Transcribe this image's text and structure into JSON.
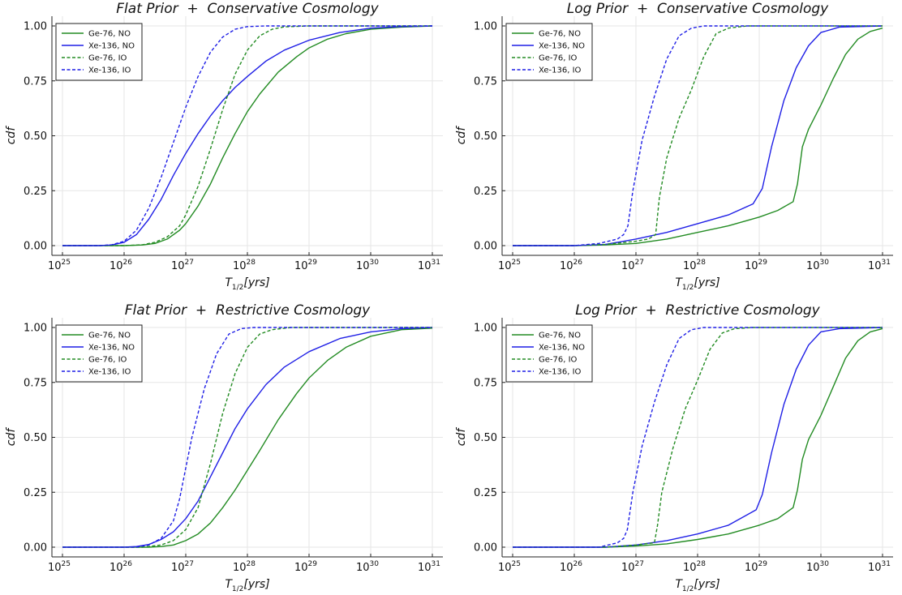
{
  "chart_data": [
    {
      "type": "line",
      "title": "Flat Prior  +  Conservative Cosmology",
      "xlabel": "T",
      "xlabel_sub": "1/2",
      "xlabel_rest": "[yrs]",
      "ylabel": "cdf",
      "xscale": "log",
      "xlim": [
        1e+25,
        1e+31
      ],
      "ylim": [
        0,
        1
      ],
      "xtick_base": "10",
      "xtick_exponents": [
        "25",
        "26",
        "27",
        "28",
        "29",
        "30",
        "31"
      ],
      "yticks": [
        "0.00",
        "0.25",
        "0.50",
        "0.75",
        "1.00"
      ],
      "grid": true,
      "legend_position": "top-left",
      "series": [
        {
          "name": "Ge-76, NO",
          "color": "#228b22",
          "dash": "solid",
          "x": [
            25,
            26,
            26.3,
            26.5,
            26.7,
            26.9,
            27,
            27.2,
            27.4,
            27.6,
            27.8,
            28,
            28.2,
            28.5,
            28.8,
            29,
            29.3,
            29.6,
            30,
            30.5,
            31
          ],
          "y": [
            0,
            0,
            0.003,
            0.01,
            0.03,
            0.07,
            0.1,
            0.18,
            0.28,
            0.4,
            0.51,
            0.61,
            0.69,
            0.79,
            0.86,
            0.9,
            0.94,
            0.965,
            0.985,
            0.995,
            1.0
          ]
        },
        {
          "name": "Xe-136, NO",
          "color": "#1f1fe6",
          "dash": "solid",
          "x": [
            25,
            25.6,
            25.8,
            26,
            26.2,
            26.4,
            26.6,
            26.8,
            27,
            27.2,
            27.4,
            27.6,
            27.8,
            28,
            28.3,
            28.6,
            29,
            29.5,
            30,
            30.5,
            31
          ],
          "y": [
            0,
            0,
            0.003,
            0.015,
            0.05,
            0.12,
            0.21,
            0.32,
            0.42,
            0.51,
            0.59,
            0.66,
            0.72,
            0.77,
            0.84,
            0.89,
            0.935,
            0.97,
            0.99,
            0.997,
            1.0
          ]
        },
        {
          "name": "Ge-76, IO",
          "color": "#228b22",
          "dash": "dashed",
          "x": [
            25,
            26,
            26.3,
            26.5,
            26.7,
            26.9,
            27,
            27.2,
            27.4,
            27.6,
            27.8,
            28,
            28.2,
            28.4,
            28.6,
            29,
            31
          ],
          "y": [
            0,
            0,
            0.004,
            0.015,
            0.04,
            0.09,
            0.14,
            0.27,
            0.44,
            0.62,
            0.78,
            0.89,
            0.955,
            0.985,
            0.996,
            1.0,
            1.0
          ]
        },
        {
          "name": "Xe-136, IO",
          "color": "#1f1fe6",
          "dash": "dashed",
          "x": [
            25,
            25.6,
            25.8,
            26,
            26.2,
            26.4,
            26.6,
            26.8,
            27,
            27.2,
            27.4,
            27.6,
            27.8,
            28,
            28.3,
            31
          ],
          "y": [
            0,
            0,
            0.004,
            0.02,
            0.07,
            0.17,
            0.31,
            0.47,
            0.63,
            0.77,
            0.88,
            0.95,
            0.985,
            0.997,
            1.0,
            1.0
          ]
        }
      ]
    },
    {
      "type": "line",
      "title": "Log Prior  +  Conservative Cosmology",
      "xlabel": "T",
      "xlabel_sub": "1/2",
      "xlabel_rest": "[yrs]",
      "ylabel": "cdf",
      "xscale": "log",
      "xlim": [
        1e+25,
        1e+31
      ],
      "ylim": [
        0,
        1
      ],
      "xtick_base": "10",
      "xtick_exponents": [
        "25",
        "26",
        "27",
        "28",
        "29",
        "30",
        "31"
      ],
      "yticks": [
        "0.00",
        "0.25",
        "0.50",
        "0.75",
        "1.00"
      ],
      "grid": true,
      "legend_position": "top-left",
      "series": [
        {
          "name": "Ge-76, NO",
          "color": "#228b22",
          "dash": "solid",
          "x": [
            25,
            26,
            26.5,
            27,
            27.5,
            28,
            28.5,
            29,
            29.3,
            29.55,
            29.62,
            29.7,
            29.8,
            30,
            30.2,
            30.4,
            30.6,
            30.8,
            31
          ],
          "y": [
            0,
            0,
            0.003,
            0.01,
            0.03,
            0.06,
            0.09,
            0.13,
            0.16,
            0.2,
            0.28,
            0.45,
            0.53,
            0.64,
            0.76,
            0.87,
            0.94,
            0.975,
            0.99
          ]
        },
        {
          "name": "Xe-136, NO",
          "color": "#1f1fe6",
          "dash": "solid",
          "x": [
            25,
            26,
            26.5,
            27,
            27.5,
            28,
            28.5,
            28.9,
            29.05,
            29.2,
            29.4,
            29.6,
            29.8,
            30,
            30.3,
            31
          ],
          "y": [
            0,
            0,
            0.005,
            0.03,
            0.06,
            0.1,
            0.14,
            0.19,
            0.26,
            0.45,
            0.66,
            0.81,
            0.91,
            0.97,
            0.995,
            1.0
          ]
        },
        {
          "name": "Ge-76, IO",
          "color": "#228b22",
          "dash": "dashed",
          "x": [
            25,
            26,
            26.5,
            27,
            27.2,
            27.32,
            27.38,
            27.5,
            27.7,
            27.9,
            28.1,
            28.3,
            28.5,
            28.8,
            29,
            31
          ],
          "y": [
            0,
            0,
            0.005,
            0.02,
            0.03,
            0.05,
            0.22,
            0.4,
            0.58,
            0.71,
            0.86,
            0.965,
            0.99,
            1.0,
            1.0,
            1.0
          ]
        },
        {
          "name": "Xe-136, IO",
          "color": "#1f1fe6",
          "dash": "dashed",
          "x": [
            25,
            26,
            26.4,
            26.7,
            26.8,
            26.87,
            26.95,
            27.1,
            27.3,
            27.5,
            27.7,
            27.9,
            28.1,
            28.3,
            31
          ],
          "y": [
            0,
            0,
            0.01,
            0.03,
            0.05,
            0.09,
            0.25,
            0.48,
            0.68,
            0.85,
            0.955,
            0.99,
            1.0,
            1.0,
            1.0
          ]
        }
      ]
    },
    {
      "type": "line",
      "title": "Flat Prior  +  Restrictive Cosmology",
      "xlabel": "T",
      "xlabel_sub": "1/2",
      "xlabel_rest": "[yrs]",
      "ylabel": "cdf",
      "xscale": "log",
      "xlim": [
        1e+25,
        1e+31
      ],
      "ylim": [
        0,
        1
      ],
      "xtick_base": "10",
      "xtick_exponents": [
        "25",
        "26",
        "27",
        "28",
        "29",
        "30",
        "31"
      ],
      "yticks": [
        "0.00",
        "0.25",
        "0.50",
        "0.75",
        "1.00"
      ],
      "grid": true,
      "legend_position": "top-left",
      "series": [
        {
          "name": "Ge-76, NO",
          "color": "#228b22",
          "dash": "solid",
          "x": [
            25,
            26.4,
            26.6,
            26.8,
            27,
            27.2,
            27.4,
            27.6,
            27.8,
            28,
            28.2,
            28.5,
            28.8,
            29,
            29.3,
            29.6,
            30,
            30.5,
            31
          ],
          "y": [
            0,
            0,
            0.003,
            0.01,
            0.03,
            0.06,
            0.11,
            0.18,
            0.26,
            0.35,
            0.44,
            0.58,
            0.7,
            0.77,
            0.85,
            0.91,
            0.96,
            0.99,
            0.997
          ]
        },
        {
          "name": "Xe-136, NO",
          "color": "#1f1fe6",
          "dash": "solid",
          "x": [
            25,
            26,
            26.2,
            26.4,
            26.6,
            26.8,
            27,
            27.2,
            27.4,
            27.6,
            27.8,
            28,
            28.3,
            28.6,
            29,
            29.5,
            30,
            30.5,
            31
          ],
          "y": [
            0,
            0,
            0.003,
            0.012,
            0.035,
            0.07,
            0.13,
            0.21,
            0.32,
            0.43,
            0.54,
            0.63,
            0.74,
            0.82,
            0.89,
            0.95,
            0.98,
            0.995,
            1.0
          ]
        },
        {
          "name": "Ge-76, IO",
          "color": "#228b22",
          "dash": "dashed",
          "x": [
            25,
            26.3,
            26.6,
            26.8,
            27,
            27.2,
            27.4,
            27.6,
            27.8,
            28,
            28.2,
            28.4,
            28.7,
            29,
            31
          ],
          "y": [
            0,
            0,
            0.01,
            0.03,
            0.08,
            0.18,
            0.38,
            0.61,
            0.79,
            0.91,
            0.97,
            0.99,
            1.0,
            1.0,
            1.0
          ]
        },
        {
          "name": "Xe-136, IO",
          "color": "#1f1fe6",
          "dash": "dashed",
          "x": [
            25,
            26.2,
            26.4,
            26.6,
            26.8,
            26.9,
            27,
            27.1,
            27.3,
            27.5,
            27.7,
            27.9,
            28.1,
            31
          ],
          "y": [
            0,
            0,
            0.01,
            0.04,
            0.12,
            0.22,
            0.36,
            0.5,
            0.72,
            0.88,
            0.97,
            0.995,
            1.0,
            1.0
          ]
        }
      ]
    },
    {
      "type": "line",
      "title": "Log Prior  +  Restrictive Cosmology",
      "xlabel": "T",
      "xlabel_sub": "1/2",
      "xlabel_rest": "[yrs]",
      "ylabel": "cdf",
      "xscale": "log",
      "xlim": [
        1e+25,
        1e+31
      ],
      "ylim": [
        0,
        1
      ],
      "xtick_base": "10",
      "xtick_exponents": [
        "25",
        "26",
        "27",
        "28",
        "29",
        "30",
        "31"
      ],
      "yticks": [
        "0.00",
        "0.25",
        "0.50",
        "0.75",
        "1.00"
      ],
      "grid": true,
      "legend_position": "top-left",
      "series": [
        {
          "name": "Ge-76, NO",
          "color": "#228b22",
          "dash": "solid",
          "x": [
            25,
            26.5,
            27,
            27.5,
            28,
            28.5,
            29,
            29.3,
            29.55,
            29.62,
            29.7,
            29.8,
            30,
            30.2,
            30.4,
            30.6,
            30.8,
            31
          ],
          "y": [
            0,
            0,
            0.005,
            0.015,
            0.035,
            0.06,
            0.1,
            0.13,
            0.18,
            0.26,
            0.4,
            0.49,
            0.6,
            0.73,
            0.86,
            0.94,
            0.98,
            0.995
          ]
        },
        {
          "name": "Xe-136, NO",
          "color": "#1f1fe6",
          "dash": "solid",
          "x": [
            25,
            26.5,
            27,
            27.5,
            28,
            28.5,
            28.95,
            29.05,
            29.2,
            29.4,
            29.6,
            29.8,
            30,
            30.3,
            31
          ],
          "y": [
            0,
            0,
            0.01,
            0.03,
            0.06,
            0.1,
            0.17,
            0.24,
            0.43,
            0.65,
            0.81,
            0.92,
            0.98,
            0.995,
            1.0
          ]
        },
        {
          "name": "Ge-76, IO",
          "color": "#228b22",
          "dash": "dashed",
          "x": [
            25,
            26.5,
            27,
            27.3,
            27.35,
            27.42,
            27.6,
            27.8,
            28,
            28.2,
            28.4,
            28.6,
            28.9,
            31
          ],
          "y": [
            0,
            0,
            0.01,
            0.02,
            0.1,
            0.25,
            0.45,
            0.63,
            0.76,
            0.9,
            0.975,
            0.995,
            1.0,
            1.0
          ]
        },
        {
          "name": "Xe-136, IO",
          "color": "#1f1fe6",
          "dash": "dashed",
          "x": [
            25,
            26.4,
            26.7,
            26.8,
            26.86,
            26.95,
            27.1,
            27.3,
            27.5,
            27.7,
            27.9,
            28.1,
            31
          ],
          "y": [
            0,
            0,
            0.02,
            0.04,
            0.08,
            0.25,
            0.46,
            0.66,
            0.83,
            0.95,
            0.99,
            1.0,
            1.0
          ]
        }
      ]
    }
  ]
}
